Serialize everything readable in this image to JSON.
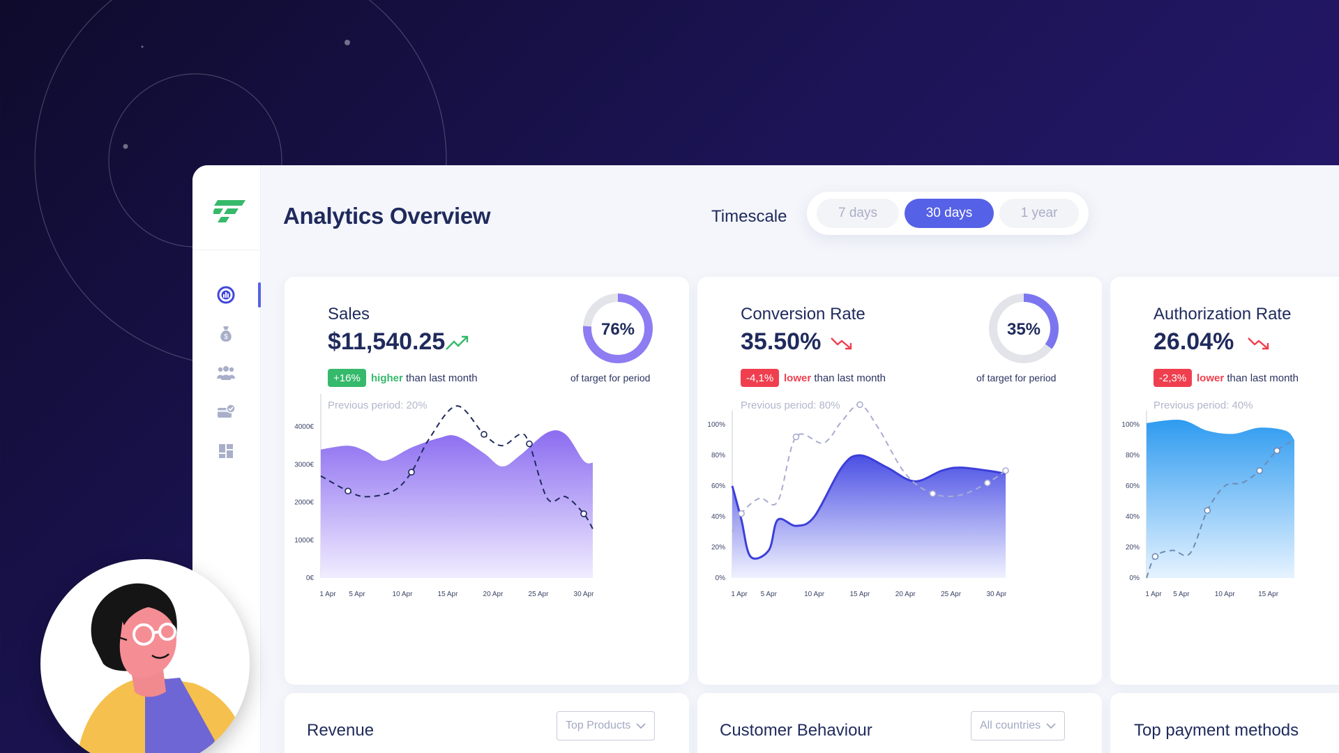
{
  "page": {
    "title": "Analytics Overview"
  },
  "timescale": {
    "label": "Timescale",
    "options": [
      "7 days",
      "30 days",
      "1 year"
    ],
    "selected": "30 days"
  },
  "sidebar": {
    "items": [
      {
        "icon": "analytics-icon",
        "active": true
      },
      {
        "icon": "money-bag-icon",
        "active": false
      },
      {
        "icon": "users-icon",
        "active": false
      },
      {
        "icon": "verified-card-icon",
        "active": false
      },
      {
        "icon": "dashboard-grid-icon",
        "active": false
      }
    ]
  },
  "cards": [
    {
      "title": "Sales",
      "value": "$11,540.25",
      "trend": "up",
      "badge": "+16%",
      "comparison_word": "higher",
      "comparison_rest": " than last month",
      "target_percent": "76%",
      "target_text": "of target for period",
      "previous": "Previous period: 20%"
    },
    {
      "title": "Conversion Rate",
      "value": "35.50%",
      "trend": "down",
      "badge": "-4,1%",
      "comparison_word": "lower",
      "comparison_rest": " than last month",
      "target_percent": "35%",
      "target_text": "of target for period",
      "previous": "Previous period: 80%"
    },
    {
      "title": "Authorization Rate",
      "value": "26.04%",
      "trend": "down",
      "badge": "-2,3%",
      "comparison_word": "lower",
      "comparison_rest": " than last month",
      "previous": "Previous period: 40%"
    }
  ],
  "bottom_cards": [
    {
      "title": "Revenue",
      "dropdown": "Top Products"
    },
    {
      "title": "Customer Behaviour",
      "dropdown": "All countries"
    },
    {
      "title": "Top payment methods"
    }
  ],
  "colors": {
    "accent": "#5561e6",
    "brand_green": "#35b96b",
    "negative": "#ef3f4f",
    "sales_area": "#8b6cf0",
    "conversion_area": "#4a4fe4",
    "authorization_area": "#2e9bf0"
  },
  "chart_data": [
    {
      "type": "area",
      "x": [
        "1 Apr",
        "5 Apr",
        "10 Apr",
        "15 Apr",
        "20 Apr",
        "25 Apr",
        "30 Apr"
      ],
      "ylabels": [
        "0€",
        "1000€",
        "2000€",
        "3000€",
        "4000€"
      ],
      "ylim": [
        0,
        4500
      ],
      "series": [
        {
          "kind": "area",
          "points": [
            [
              0,
              3400
            ],
            [
              3,
              3500
            ],
            [
              5,
              3350
            ],
            [
              7,
              3100
            ],
            [
              10,
              3450
            ],
            [
              13,
              3700
            ],
            [
              15,
              3750
            ],
            [
              18,
              3300
            ],
            [
              20,
              2950
            ],
            [
              22,
              3250
            ],
            [
              25,
              3850
            ],
            [
              27,
              3800
            ],
            [
              29,
              3100
            ],
            [
              30,
              3050
            ]
          ]
        },
        {
          "kind": "line",
          "points": [
            [
              0,
              2700
            ],
            [
              3,
              2300
            ],
            [
              5,
              2150
            ],
            [
              8,
              2300
            ],
            [
              10,
              2800
            ],
            [
              12,
              3700
            ],
            [
              15,
              4550
            ],
            [
              18,
              3800
            ],
            [
              20,
              3500
            ],
            [
              22,
              3800
            ],
            [
              23,
              3550
            ],
            [
              25,
              2100
            ],
            [
              27,
              2150
            ],
            [
              29,
              1700
            ],
            [
              30,
              1300
            ]
          ]
        }
      ]
    },
    {
      "type": "area",
      "x": [
        "1 Apr",
        "5 Apr",
        "10 Apr",
        "15 Apr",
        "20 Apr",
        "25 Apr",
        "30 Apr"
      ],
      "ylabels": [
        "0%",
        "20%",
        "40%",
        "60%",
        "80%",
        "100%"
      ],
      "ylim": [
        0,
        100
      ],
      "series": [
        {
          "kind": "area",
          "points": [
            [
              0,
              60
            ],
            [
              1,
              38
            ],
            [
              2,
              14
            ],
            [
              4,
              18
            ],
            [
              5,
              38
            ],
            [
              7,
              34
            ],
            [
              9,
              40
            ],
            [
              12,
              72
            ],
            [
              14,
              80
            ],
            [
              17,
              72
            ],
            [
              20,
              63
            ],
            [
              23,
              70
            ],
            [
              25,
              72
            ],
            [
              28,
              70
            ],
            [
              30,
              68
            ]
          ]
        },
        {
          "kind": "line",
          "points": [
            [
              0,
              30
            ],
            [
              1,
              42
            ],
            [
              3,
              52
            ],
            [
              5,
              50
            ],
            [
              7,
              92
            ],
            [
              10,
              88
            ],
            [
              12,
              102
            ],
            [
              14,
              113
            ],
            [
              16,
              98
            ],
            [
              19,
              68
            ],
            [
              22,
              55
            ],
            [
              25,
              54
            ],
            [
              28,
              62
            ],
            [
              30,
              70
            ]
          ]
        }
      ]
    },
    {
      "type": "area",
      "x": [
        "1 Apr",
        "5 Apr",
        "10 Apr",
        "15 Apr"
      ],
      "ylabels": [
        "0%",
        "20%",
        "40%",
        "60%",
        "80%",
        "100%"
      ],
      "ylim": [
        0,
        100
      ],
      "series": [
        {
          "kind": "area",
          "points": [
            [
              0,
              101
            ],
            [
              4,
              103
            ],
            [
              7,
              96
            ],
            [
              10,
              94
            ],
            [
              13,
              98
            ],
            [
              16,
              96
            ],
            [
              17,
              90
            ]
          ]
        },
        {
          "kind": "line",
          "points": [
            [
              0,
              0
            ],
            [
              1,
              14
            ],
            [
              3,
              18
            ],
            [
              5,
              16
            ],
            [
              7,
              44
            ],
            [
              9,
              60
            ],
            [
              11,
              62
            ],
            [
              13,
              70
            ],
            [
              15,
              83
            ],
            [
              17,
              90
            ]
          ]
        }
      ]
    }
  ]
}
